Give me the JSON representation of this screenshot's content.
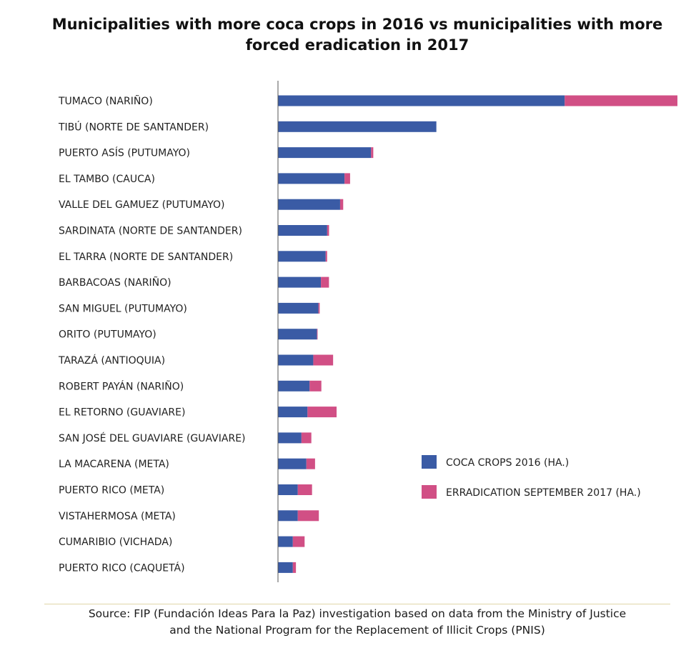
{
  "header": {
    "title_line1": "Municipalities with more coca crops in 2016 vs municipalities with more",
    "title_line2": "forced eradication in 2017"
  },
  "colors": {
    "coca": "#3a5ba5",
    "eradication": "#d14f85",
    "axis": "#555555"
  },
  "chart_data": {
    "type": "bar",
    "orientation": "horizontal",
    "stacked": true,
    "title": "Municipalities with more coca crops in 2016 vs municipalities with more forced eradication in 2017",
    "categories": [
      "TUMACO (NARIÑO)",
      "TIBÚ (NORTE DE SANTANDER)",
      "PUERTO ASÍS (PUTUMAYO)",
      "EL TAMBO (CAUCA)",
      "VALLE DEL GAMUEZ (PUTUMAYO)",
      "SARDINATA (NORTE DE SANTANDER)",
      "EL TARRA (NORTE DE SANTANDER)",
      "BARBACOAS (NARIÑO)",
      "SAN MIGUEL (PUTUMAYO)",
      "ORITO (PUTUMAYO)",
      "TARAZÁ (ANTIOQUIA)",
      "ROBERT PAYÁN (NARIÑO)",
      "EL RETORNO (GUAVIARE)",
      "SAN JOSÉ DEL GUAVIARE (GUAVIARE)",
      "LA MACARENA (META)",
      "PUERTO RICO (META)",
      "VISTAHERMOSA (META)",
      "CUMARIBIO (VICHADA)",
      "PUERTO RICO (CAQUETÁ)"
    ],
    "series": [
      {
        "name": "COCA CROPS 2016 (HA.)",
        "values": [
          23148,
          12787,
          7514,
          5373,
          5016,
          3972,
          3848,
          3467,
          3268,
          3147,
          2851,
          2553,
          2383,
          1894,
          2293,
          1600,
          1600,
          1200,
          1200
        ]
      },
      {
        "name": "ERRADICATION SEPTEMBER 2017 (HA.)",
        "values": [
          9100,
          0,
          180,
          450,
          250,
          150,
          120,
          650,
          100,
          50,
          1600,
          950,
          2350,
          800,
          700,
          1150,
          1700,
          950,
          250
        ]
      }
    ],
    "xlim": [
      0,
      32248
    ],
    "legend_position": "right-middle",
    "grid": false
  },
  "source": {
    "line1": "Source: FIP (Fundación Ideas Para la Paz) investigation based on data from the  Ministry of Justice",
    "line2": "and the National Program for the Replacement of Illicit Crops (PNIS)"
  }
}
